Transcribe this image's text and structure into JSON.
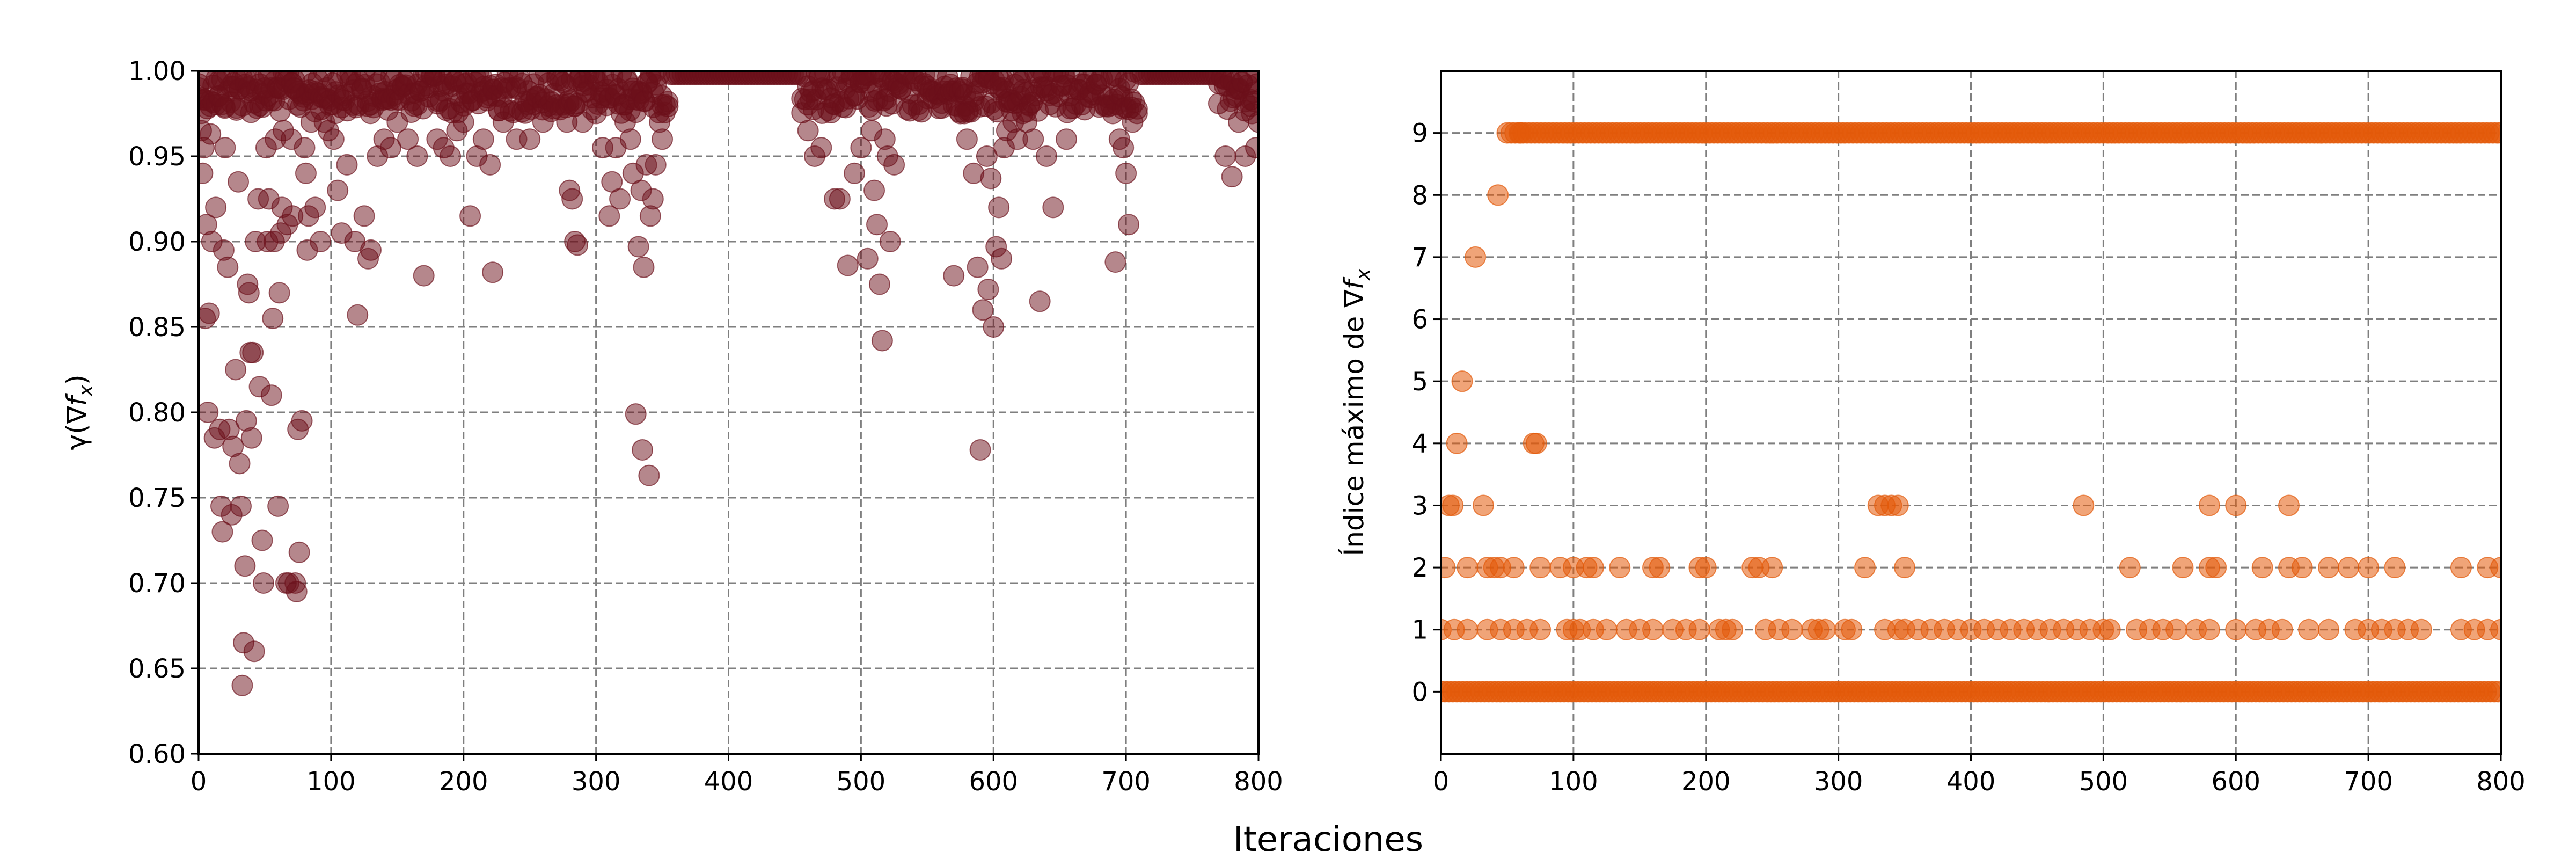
{
  "figure": {
    "xlabel": "Iteraciones"
  },
  "chart_data": [
    {
      "type": "scatter",
      "title": "",
      "xlabel": "",
      "ylabel": "γ(∇f_x)",
      "ylabel_parts": {
        "main": "γ(∇",
        "italic": "f",
        "sub": "x",
        "close": ")"
      },
      "xlim": [
        0,
        800
      ],
      "ylim": [
        0.6,
        1.0
      ],
      "xticks": [
        0,
        100,
        200,
        300,
        400,
        500,
        600,
        700,
        800
      ],
      "yticks": [
        "0.60",
        "0.65",
        "0.70",
        "0.75",
        "0.80",
        "0.85",
        "0.90",
        "0.95",
        "1.00"
      ],
      "grid": true,
      "color": "#6b0f1a",
      "alpha": 0.5,
      "dense_top_band": {
        "x_range": [
          0,
          800
        ],
        "y_range": [
          0.975,
          1.0
        ],
        "comment_free": true
      },
      "points": [
        [
          0,
          0.99
        ],
        [
          2,
          0.965
        ],
        [
          3,
          0.94
        ],
        [
          4,
          0.955
        ],
        [
          5,
          0.855
        ],
        [
          6,
          0.91
        ],
        [
          7,
          0.8
        ],
        [
          8,
          0.858
        ],
        [
          9,
          0.963
        ],
        [
          10,
          0.9
        ],
        [
          12,
          0.785
        ],
        [
          13,
          0.92
        ],
        [
          15,
          0.985
        ],
        [
          16,
          0.79
        ],
        [
          17,
          0.745
        ],
        [
          18,
          0.73
        ],
        [
          19,
          0.895
        ],
        [
          20,
          0.955
        ],
        [
          22,
          0.885
        ],
        [
          23,
          0.79
        ],
        [
          25,
          0.74
        ],
        [
          26,
          0.78
        ],
        [
          28,
          0.825
        ],
        [
          29,
          0.995
        ],
        [
          30,
          0.935
        ],
        [
          31,
          0.77
        ],
        [
          32,
          0.745
        ],
        [
          33,
          0.64
        ],
        [
          34,
          0.665
        ],
        [
          35,
          0.71
        ],
        [
          36,
          0.795
        ],
        [
          37,
          0.875
        ],
        [
          38,
          0.87
        ],
        [
          39,
          0.835
        ],
        [
          40,
          0.785
        ],
        [
          41,
          0.835
        ],
        [
          42,
          0.66
        ],
        [
          43,
          0.9
        ],
        [
          45,
          0.925
        ],
        [
          46,
          0.815
        ],
        [
          48,
          0.725
        ],
        [
          49,
          0.7
        ],
        [
          50,
          0.99
        ],
        [
          51,
          0.955
        ],
        [
          52,
          0.9
        ],
        [
          53,
          0.925
        ],
        [
          55,
          0.81
        ],
        [
          56,
          0.855
        ],
        [
          57,
          0.9
        ],
        [
          58,
          0.96
        ],
        [
          60,
          0.745
        ],
        [
          61,
          0.87
        ],
        [
          62,
          0.905
        ],
        [
          63,
          0.92
        ],
        [
          64,
          0.965
        ],
        [
          66,
          0.7
        ],
        [
          67,
          0.91
        ],
        [
          68,
          0.7
        ],
        [
          70,
          0.96
        ],
        [
          71,
          0.915
        ],
        [
          72,
          0.99
        ],
        [
          73,
          0.7
        ],
        [
          74,
          0.695
        ],
        [
          75,
          0.79
        ],
        [
          76,
          0.718
        ],
        [
          78,
          0.795
        ],
        [
          80,
          0.955
        ],
        [
          81,
          0.94
        ],
        [
          82,
          0.895
        ],
        [
          83,
          0.915
        ],
        [
          85,
          0.97
        ],
        [
          88,
          0.92
        ],
        [
          92,
          0.9
        ],
        [
          95,
          0.97
        ],
        [
          98,
          0.965
        ],
        [
          102,
          0.96
        ],
        [
          105,
          0.93
        ],
        [
          108,
          0.905
        ],
        [
          112,
          0.945
        ],
        [
          118,
          0.9
        ],
        [
          120,
          0.857
        ],
        [
          125,
          0.915
        ],
        [
          128,
          0.89
        ],
        [
          130,
          0.895
        ],
        [
          135,
          0.95
        ],
        [
          140,
          0.96
        ],
        [
          145,
          0.955
        ],
        [
          150,
          0.97
        ],
        [
          158,
          0.96
        ],
        [
          165,
          0.95
        ],
        [
          170,
          0.88
        ],
        [
          180,
          0.96
        ],
        [
          185,
          0.955
        ],
        [
          190,
          0.95
        ],
        [
          195,
          0.965
        ],
        [
          200,
          0.97
        ],
        [
          205,
          0.915
        ],
        [
          210,
          0.95
        ],
        [
          215,
          0.96
        ],
        [
          220,
          0.945
        ],
        [
          222,
          0.882
        ],
        [
          230,
          0.97
        ],
        [
          240,
          0.96
        ],
        [
          250,
          0.96
        ],
        [
          260,
          0.97
        ],
        [
          270,
          0.98
        ],
        [
          278,
          0.97
        ],
        [
          280,
          0.93
        ],
        [
          282,
          0.925
        ],
        [
          284,
          0.9
        ],
        [
          286,
          0.898
        ],
        [
          290,
          0.97
        ],
        [
          300,
          0.975
        ],
        [
          305,
          0.955
        ],
        [
          310,
          0.915
        ],
        [
          312,
          0.935
        ],
        [
          315,
          0.955
        ],
        [
          318,
          0.925
        ],
        [
          322,
          0.97
        ],
        [
          326,
          0.96
        ],
        [
          328,
          0.94
        ],
        [
          330,
          0.799
        ],
        [
          332,
          0.897
        ],
        [
          334,
          0.93
        ],
        [
          335,
          0.778
        ],
        [
          336,
          0.885
        ],
        [
          338,
          0.945
        ],
        [
          340,
          0.763
        ],
        [
          341,
          0.915
        ],
        [
          343,
          0.925
        ],
        [
          345,
          0.945
        ],
        [
          348,
          0.97
        ],
        [
          350,
          0.96
        ],
        [
          460,
          0.965
        ],
        [
          465,
          0.95
        ],
        [
          470,
          0.955
        ],
        [
          480,
          0.925
        ],
        [
          484,
          0.925
        ],
        [
          490,
          0.886
        ],
        [
          495,
          0.94
        ],
        [
          500,
          0.955
        ],
        [
          505,
          0.89
        ],
        [
          508,
          0.965
        ],
        [
          510,
          0.93
        ],
        [
          512,
          0.91
        ],
        [
          514,
          0.875
        ],
        [
          516,
          0.842
        ],
        [
          518,
          0.96
        ],
        [
          520,
          0.95
        ],
        [
          522,
          0.9
        ],
        [
          525,
          0.945
        ],
        [
          570,
          0.88
        ],
        [
          575,
          0.975
        ],
        [
          578,
          0.975
        ],
        [
          580,
          0.96
        ],
        [
          585,
          0.94
        ],
        [
          588,
          0.885
        ],
        [
          590,
          0.778
        ],
        [
          592,
          0.86
        ],
        [
          595,
          0.95
        ],
        [
          596,
          0.872
        ],
        [
          598,
          0.937
        ],
        [
          600,
          0.85
        ],
        [
          602,
          0.897
        ],
        [
          604,
          0.92
        ],
        [
          606,
          0.89
        ],
        [
          608,
          0.955
        ],
        [
          610,
          0.965
        ],
        [
          615,
          0.97
        ],
        [
          618,
          0.96
        ],
        [
          622,
          0.975
        ],
        [
          625,
          0.97
        ],
        [
          630,
          0.96
        ],
        [
          635,
          0.865
        ],
        [
          640,
          0.95
        ],
        [
          645,
          0.92
        ],
        [
          655,
          0.96
        ],
        [
          690,
          0.975
        ],
        [
          692,
          0.888
        ],
        [
          695,
          0.96
        ],
        [
          698,
          0.955
        ],
        [
          700,
          0.94
        ],
        [
          702,
          0.91
        ],
        [
          705,
          0.97
        ],
        [
          775,
          0.95
        ],
        [
          780,
          0.938
        ],
        [
          785,
          0.97
        ],
        [
          790,
          0.95
        ],
        [
          795,
          0.975
        ],
        [
          798,
          0.955
        ],
        [
          800,
          0.97
        ]
      ]
    },
    {
      "type": "scatter",
      "title": "",
      "xlabel": "",
      "ylabel": "Índice máximo de ∇f_x",
      "ylabel_parts": {
        "main": "Índice máximo de ∇",
        "italic": "f",
        "sub": "x",
        "close": ""
      },
      "xlim": [
        0,
        800
      ],
      "ylim": [
        -1,
        10
      ],
      "xticks": [
        0,
        100,
        200,
        300,
        400,
        500,
        600,
        700,
        800
      ],
      "yticks": [
        0,
        1,
        2,
        3,
        4,
        5,
        6,
        7,
        8,
        9
      ],
      "grid": true,
      "color": "#e35a0a",
      "alpha": 0.55,
      "points": [
        [
          3,
          2
        ],
        [
          6,
          3
        ],
        [
          9,
          3
        ],
        [
          12,
          4
        ],
        [
          16,
          5
        ],
        [
          20,
          2
        ],
        [
          26,
          7
        ],
        [
          32,
          3
        ],
        [
          35,
          2
        ],
        [
          40,
          2
        ],
        [
          43,
          8
        ],
        [
          45,
          2
        ],
        [
          55,
          2
        ],
        [
          60,
          9
        ],
        [
          70,
          4
        ],
        [
          72,
          4
        ],
        [
          75,
          2
        ],
        [
          90,
          2
        ],
        [
          100,
          2
        ],
        [
          110,
          2
        ],
        [
          115,
          2
        ],
        [
          135,
          2
        ],
        [
          160,
          2
        ],
        [
          165,
          2
        ],
        [
          195,
          2
        ],
        [
          200,
          2
        ],
        [
          235,
          2
        ],
        [
          240,
          2
        ],
        [
          250,
          2
        ],
        [
          320,
          2
        ],
        [
          350,
          2
        ],
        [
          520,
          2
        ],
        [
          560,
          2
        ],
        [
          580,
          2
        ],
        [
          585,
          2
        ],
        [
          620,
          2
        ],
        [
          640,
          2
        ],
        [
          650,
          2
        ],
        [
          670,
          2
        ],
        [
          685,
          2
        ],
        [
          700,
          2
        ],
        [
          720,
          2
        ],
        [
          770,
          2
        ],
        [
          790,
          2
        ],
        [
          800,
          2
        ],
        [
          330,
          3
        ],
        [
          335,
          3
        ],
        [
          340,
          3
        ],
        [
          345,
          3
        ],
        [
          485,
          3
        ],
        [
          580,
          3
        ],
        [
          600,
          3
        ],
        [
          640,
          3
        ],
        [
          0,
          1
        ],
        [
          10,
          1
        ],
        [
          20,
          1
        ],
        [
          35,
          1
        ],
        [
          45,
          1
        ],
        [
          55,
          1
        ],
        [
          65,
          1
        ],
        [
          75,
          1
        ],
        [
          95,
          1
        ],
        [
          100,
          1
        ],
        [
          105,
          1
        ],
        [
          115,
          1
        ],
        [
          125,
          1
        ],
        [
          140,
          1
        ],
        [
          150,
          1
        ],
        [
          160,
          1
        ],
        [
          175,
          1
        ],
        [
          185,
          1
        ],
        [
          195,
          1
        ],
        [
          210,
          1
        ],
        [
          215,
          1
        ],
        [
          220,
          1
        ],
        [
          245,
          1
        ],
        [
          255,
          1
        ],
        [
          265,
          1
        ],
        [
          280,
          1
        ],
        [
          285,
          1
        ],
        [
          290,
          1
        ],
        [
          305,
          1
        ],
        [
          310,
          1
        ],
        [
          335,
          1
        ],
        [
          345,
          1
        ],
        [
          350,
          1
        ],
        [
          360,
          1
        ],
        [
          370,
          1
        ],
        [
          380,
          1
        ],
        [
          390,
          1
        ],
        [
          400,
          1
        ],
        [
          410,
          1
        ],
        [
          420,
          1
        ],
        [
          430,
          1
        ],
        [
          440,
          1
        ],
        [
          450,
          1
        ],
        [
          460,
          1
        ],
        [
          470,
          1
        ],
        [
          480,
          1
        ],
        [
          490,
          1
        ],
        [
          500,
          1
        ],
        [
          505,
          1
        ],
        [
          525,
          1
        ],
        [
          535,
          1
        ],
        [
          545,
          1
        ],
        [
          555,
          1
        ],
        [
          570,
          1
        ],
        [
          580,
          1
        ],
        [
          600,
          1
        ],
        [
          615,
          1
        ],
        [
          625,
          1
        ],
        [
          635,
          1
        ],
        [
          655,
          1
        ],
        [
          670,
          1
        ],
        [
          690,
          1
        ],
        [
          700,
          1
        ],
        [
          710,
          1
        ],
        [
          720,
          1
        ],
        [
          730,
          1
        ],
        [
          740,
          1
        ],
        [
          770,
          1
        ],
        [
          780,
          1
        ],
        [
          790,
          1
        ],
        [
          800,
          1
        ]
      ],
      "dense_rows": [
        {
          "y": 0,
          "x_range": [
            0,
            800
          ]
        },
        {
          "y": 9,
          "x_range": [
            50,
            800
          ]
        }
      ]
    }
  ]
}
